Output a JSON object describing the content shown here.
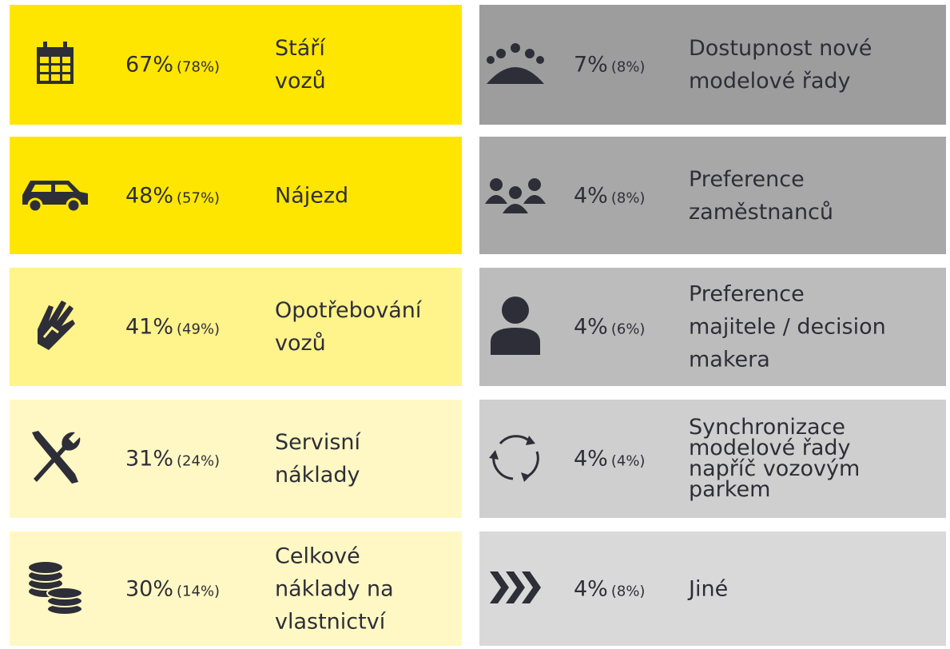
{
  "items": [
    {
      "value": "67%",
      "previous": "(78%)",
      "label": [
        "Stáří",
        "vozů"
      ]
    },
    {
      "value": "48%",
      "previous": "(57%)",
      "label": [
        "Nájezd"
      ]
    },
    {
      "value": "41%",
      "previous": "(49%)",
      "label": [
        "Opotřebování",
        "vozů"
      ]
    },
    {
      "value": "31%",
      "previous": "(24%)",
      "label": [
        "Servisní",
        "náklady"
      ]
    },
    {
      "value": "30%",
      "previous": "(14%)",
      "label": [
        "Celkové",
        "náklady na",
        "vlastnictví"
      ]
    },
    {
      "value": "7%",
      "previous": "(8%)",
      "label": [
        "Dostupnost nové",
        "modelové řady"
      ]
    },
    {
      "value": "4%",
      "previous": "(8%)",
      "label": [
        "Preference",
        "zaměstnanců"
      ]
    },
    {
      "value": "4%",
      "previous": "(6%)",
      "label": [
        "Preference",
        "majitele / decision",
        "makera"
      ]
    },
    {
      "value": "4%",
      "previous": "(4%)",
      "label": [
        "Synchronizace",
        "modelové řady",
        "napříč vozovým",
        "parkem"
      ]
    },
    {
      "value": "4%",
      "previous": "(8%)",
      "label": [
        "Jiné"
      ]
    }
  ]
}
